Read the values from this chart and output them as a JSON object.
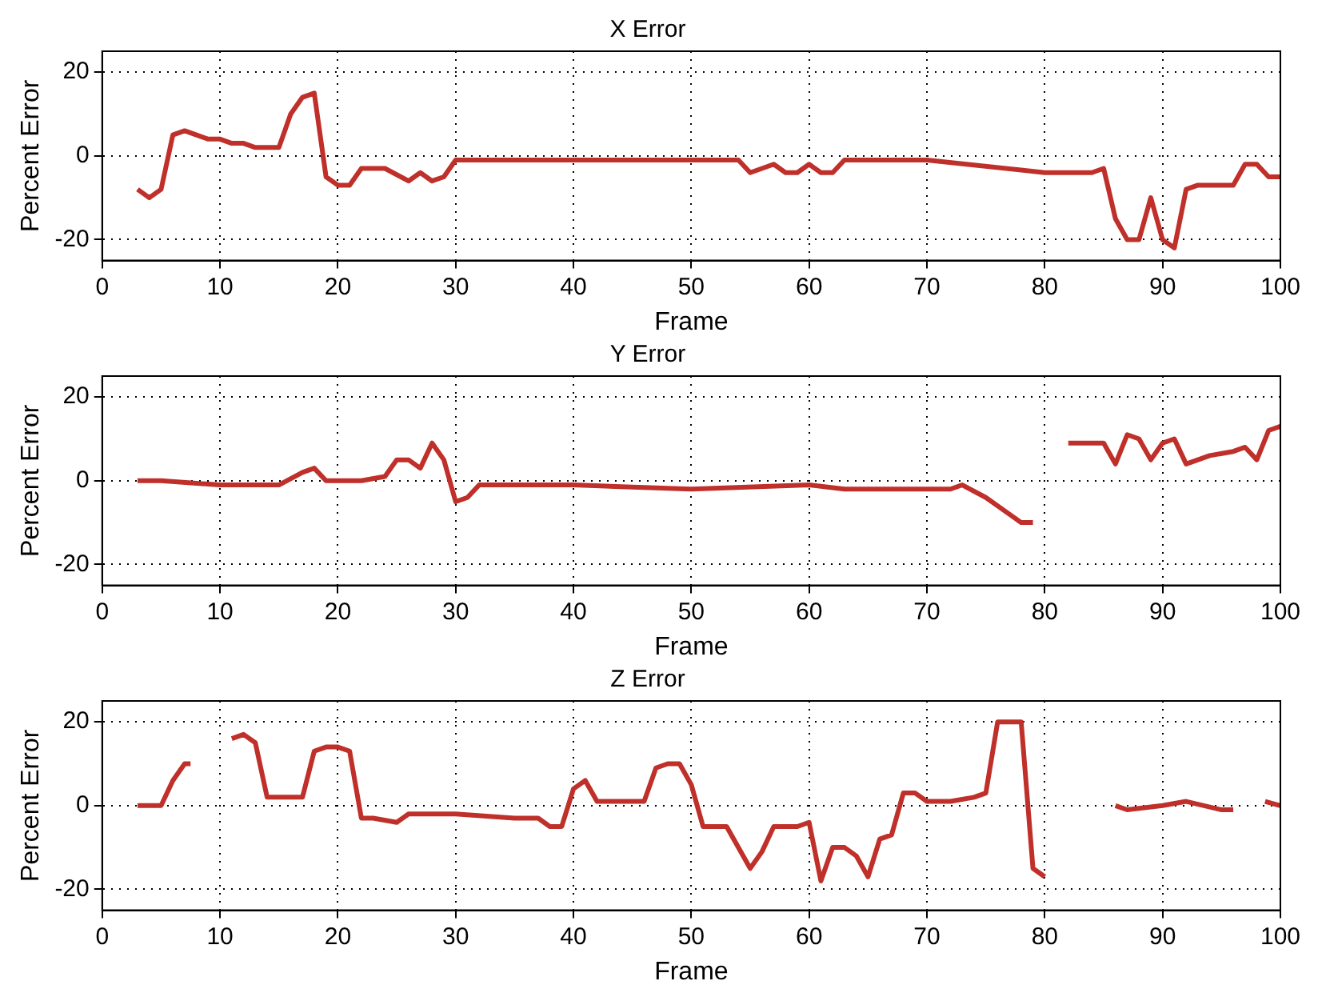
{
  "chart_data": [
    {
      "type": "line",
      "title": "X Error",
      "xlabel": "Frame",
      "ylabel": "Percent Error",
      "color": "#c0302a",
      "marker": "none",
      "grid": true,
      "legend": false,
      "xlim": [
        0,
        100
      ],
      "xticks": [
        0,
        10,
        20,
        30,
        40,
        50,
        60,
        70,
        80,
        90,
        100
      ],
      "ylim": [
        -25,
        25
      ],
      "yticks": [
        -20,
        0,
        20
      ],
      "x": [
        3,
        4,
        5,
        6,
        7,
        8,
        9,
        10,
        11,
        12,
        13,
        15,
        16,
        17,
        18,
        19,
        20,
        21,
        22,
        24,
        26,
        27,
        28,
        29,
        30,
        40,
        50,
        54,
        55,
        57,
        58,
        59,
        60,
        61,
        62,
        63,
        70,
        80,
        84,
        85,
        86,
        87,
        88,
        89,
        90,
        91,
        92,
        93,
        96,
        97,
        98,
        99,
        100
      ],
      "values": [
        -8,
        -10,
        -8,
        5,
        6,
        5,
        4,
        4,
        3,
        3,
        2,
        2,
        10,
        14,
        15,
        -5,
        -7,
        -7,
        -3,
        -3,
        -6,
        -4,
        -6,
        -5,
        -1,
        -1,
        -1,
        -1,
        -4,
        -2,
        -4,
        -4,
        -2,
        -4,
        -4,
        -1,
        -1,
        -4,
        -4,
        -3,
        -15,
        -20,
        -20,
        -10,
        -20,
        -22,
        -8,
        -7,
        -7,
        -2,
        -2,
        -5,
        -5
      ]
    },
    {
      "type": "line",
      "title": "Y Error",
      "xlabel": "Frame",
      "ylabel": "Percent Error",
      "color": "#c0302a",
      "marker": "none",
      "grid": true,
      "legend": false,
      "xlim": [
        0,
        100
      ],
      "xticks": [
        0,
        10,
        20,
        30,
        40,
        50,
        60,
        70,
        80,
        90,
        100
      ],
      "ylim": [
        -25,
        25
      ],
      "yticks": [
        -20,
        0,
        20
      ],
      "x": [
        3,
        5,
        10,
        15,
        17,
        18,
        19,
        21,
        22,
        24,
        25,
        26,
        27,
        28,
        29,
        30,
        31,
        32,
        40,
        50,
        60,
        63,
        65,
        70,
        72,
        73,
        75,
        77,
        78,
        79,
        79.5,
        80.5,
        81.5,
        82,
        85,
        86,
        87,
        88,
        89,
        90,
        91,
        92,
        94,
        96,
        97,
        98,
        99,
        100
      ],
      "values": [
        0,
        0,
        -1,
        -1,
        2,
        3,
        0,
        0,
        0,
        1,
        5,
        5,
        3,
        9,
        5,
        -5,
        -4,
        -1,
        -1,
        -2,
        -1,
        -2,
        -2,
        -2,
        -2,
        -1,
        -4,
        -8,
        -10,
        -10,
        null,
        null,
        null,
        9,
        9,
        4,
        11,
        10,
        5,
        9,
        10,
        4,
        6,
        7,
        8,
        5,
        12,
        13
      ]
    },
    {
      "type": "line",
      "title": "Z Error",
      "xlabel": "Frame",
      "ylabel": "Percent Error",
      "color": "#c0302a",
      "marker": "none",
      "grid": true,
      "legend": false,
      "xlim": [
        0,
        100
      ],
      "xticks": [
        0,
        10,
        20,
        30,
        40,
        50,
        60,
        70,
        80,
        90,
        100
      ],
      "ylim": [
        -25,
        25
      ],
      "yticks": [
        -20,
        0,
        20
      ],
      "x": [
        3,
        5,
        6,
        7,
        7.5,
        8,
        9,
        10.5,
        11,
        12,
        13,
        14,
        17,
        18,
        19,
        20,
        21,
        22,
        23,
        25,
        26,
        28,
        30,
        35,
        37,
        38,
        39,
        40,
        41,
        42,
        45,
        46,
        47,
        48,
        49,
        50,
        51,
        53,
        55,
        56,
        57,
        59,
        60,
        61,
        62,
        63,
        64,
        65,
        66,
        67,
        68,
        69,
        70,
        72,
        74,
        75,
        76,
        78,
        79,
        80,
        81,
        82.5,
        84,
        86,
        87,
        90,
        92,
        95,
        96,
        96.5,
        97.5,
        98.5,
        98.7,
        100
      ],
      "values": [
        0,
        0,
        6,
        10,
        10,
        null,
        null,
        null,
        16,
        17,
        15,
        2,
        2,
        13,
        14,
        14,
        13,
        -3,
        -3,
        -4,
        -2,
        -2,
        -2,
        -3,
        -3,
        -5,
        -5,
        4,
        6,
        1,
        1,
        1,
        9,
        10,
        10,
        5,
        -5,
        -5,
        -15,
        -11,
        -5,
        -5,
        -4,
        -18,
        -10,
        -10,
        -12,
        -17,
        -8,
        -7,
        3,
        3,
        1,
        1,
        2,
        3,
        20,
        20,
        -15,
        -17,
        null,
        null,
        null,
        0,
        -1,
        0,
        1,
        -1,
        -1,
        null,
        null,
        null,
        1,
        0
      ]
    }
  ]
}
